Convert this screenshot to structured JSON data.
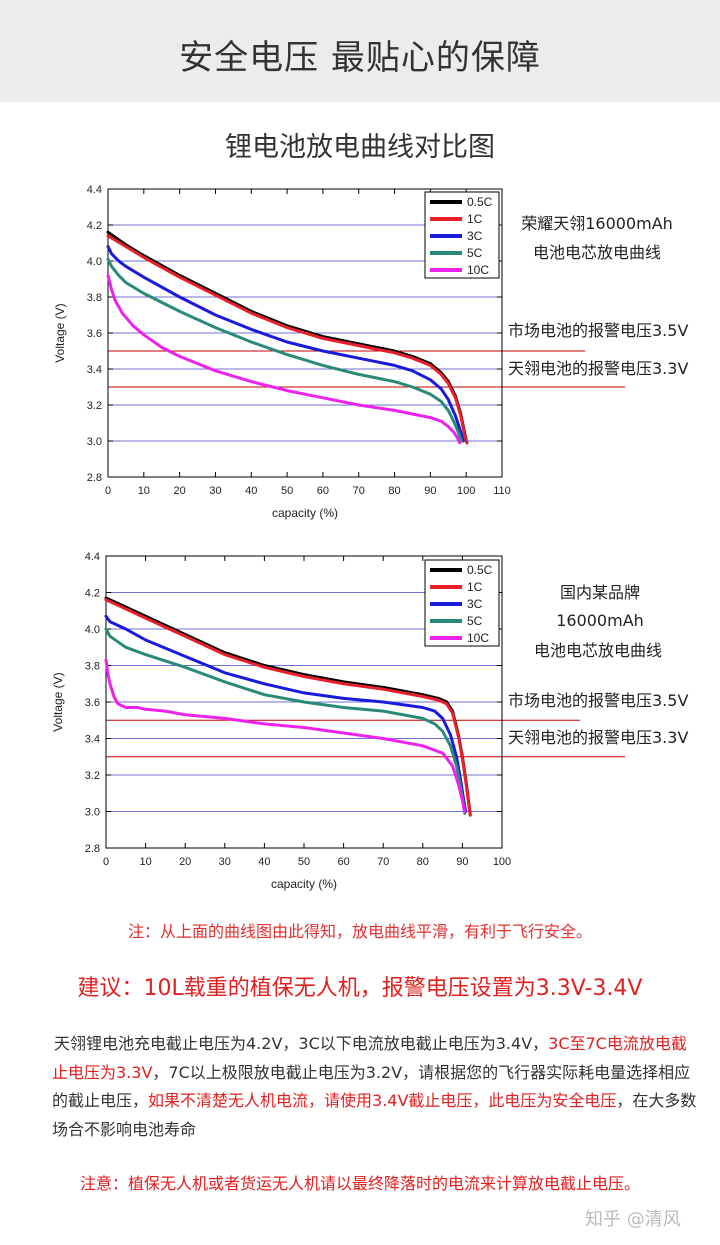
{
  "header": {
    "title": "安全电压 最贴心的保障"
  },
  "subtitle": "锂电池放电曲线对比图",
  "legend_labels": [
    "0.5C",
    "1C",
    "3C",
    "5C",
    "10C"
  ],
  "colors": {
    "c05": "#000000",
    "c1": "#e8202a",
    "c3": "#1a1adc",
    "c5": "#2a8a7a",
    "c10": "#ee22ee",
    "grid": "#7070d0",
    "ref": "#c00000"
  },
  "chart_data": [
    {
      "type": "line",
      "xlabel": "capacity (%)",
      "ylabel": "Voltage (V)",
      "xlim": [
        0,
        110
      ],
      "ylim": [
        2.8,
        4.4
      ],
      "xticks": [
        0,
        10,
        20,
        30,
        40,
        50,
        60,
        70,
        80,
        90,
        100,
        110
      ],
      "yticks": [
        2.8,
        3.0,
        3.2,
        3.4,
        3.6,
        3.8,
        4.0,
        4.2,
        4.4
      ],
      "grid_y": [
        3.0,
        3.2,
        3.4,
        3.6,
        3.8,
        4.0,
        4.2
      ],
      "ref_lines": [
        3.5,
        3.3
      ],
      "annotations": [
        "荣耀天翎16000mAh",
        "电池电芯放电曲线",
        "市场电池的报警电压3.5V",
        "天翎电池的报警电压3.3V"
      ],
      "series": [
        {
          "name": "0.5C",
          "color": "#000000",
          "x": [
            0,
            5,
            10,
            20,
            30,
            40,
            50,
            60,
            70,
            80,
            85,
            90,
            93,
            95,
            97,
            98.5,
            99.5,
            100.2
          ],
          "y": [
            4.16,
            4.09,
            4.03,
            3.92,
            3.82,
            3.72,
            3.64,
            3.58,
            3.54,
            3.5,
            3.47,
            3.43,
            3.38,
            3.33,
            3.25,
            3.15,
            3.05,
            2.99
          ]
        },
        {
          "name": "1C",
          "color": "#e8202a",
          "x": [
            0,
            5,
            10,
            20,
            30,
            40,
            50,
            60,
            70,
            80,
            85,
            90,
            93,
            95,
            97,
            98.5,
            99.5,
            100.2
          ],
          "y": [
            4.14,
            4.08,
            4.02,
            3.91,
            3.81,
            3.71,
            3.63,
            3.57,
            3.53,
            3.49,
            3.46,
            3.42,
            3.37,
            3.32,
            3.24,
            3.14,
            3.04,
            2.99
          ]
        },
        {
          "name": "3C",
          "color": "#1a1adc",
          "x": [
            0,
            1,
            3,
            5,
            10,
            20,
            30,
            40,
            50,
            60,
            70,
            80,
            85,
            90,
            93,
            95,
            97,
            98.5,
            99.2
          ],
          "y": [
            4.08,
            4.04,
            4.0,
            3.97,
            3.91,
            3.8,
            3.7,
            3.62,
            3.55,
            3.5,
            3.46,
            3.42,
            3.39,
            3.34,
            3.29,
            3.23,
            3.14,
            3.05,
            3.0
          ]
        },
        {
          "name": "5C",
          "color": "#2a8a7a",
          "x": [
            0,
            1,
            3,
            5,
            10,
            20,
            30,
            40,
            50,
            60,
            70,
            80,
            85,
            90,
            93,
            95,
            96.5,
            97.8,
            98.7
          ],
          "y": [
            4.01,
            3.97,
            3.92,
            3.88,
            3.82,
            3.72,
            3.63,
            3.55,
            3.48,
            3.42,
            3.37,
            3.33,
            3.3,
            3.26,
            3.22,
            3.17,
            3.11,
            3.05,
            3.0
          ]
        },
        {
          "name": "10C",
          "color": "#ee22ee",
          "x": [
            0,
            1,
            2,
            4,
            7,
            10,
            15,
            20,
            30,
            40,
            50,
            60,
            70,
            80,
            85,
            90,
            93,
            95,
            96.5,
            97.5,
            98.2
          ],
          "y": [
            3.92,
            3.84,
            3.78,
            3.71,
            3.64,
            3.59,
            3.52,
            3.47,
            3.39,
            3.33,
            3.28,
            3.24,
            3.2,
            3.17,
            3.15,
            3.13,
            3.11,
            3.08,
            3.05,
            3.02,
            2.99
          ]
        }
      ]
    },
    {
      "type": "line",
      "xlabel": "capacity (%)",
      "ylabel": "Voltage (V)",
      "xlim": [
        0,
        100
      ],
      "ylim": [
        2.8,
        4.4
      ],
      "xticks": [
        0,
        10,
        20,
        30,
        40,
        50,
        60,
        70,
        80,
        90,
        100
      ],
      "yticks": [
        2.8,
        3.0,
        3.2,
        3.4,
        3.6,
        3.8,
        4.0,
        4.2,
        4.4
      ],
      "grid_y": [
        3.0,
        3.2,
        3.4,
        3.6,
        3.8,
        4.0,
        4.2
      ],
      "ref_lines": [
        3.5,
        3.3
      ],
      "annotations": [
        "国内某品牌",
        "16000mAh",
        "电池电芯放电曲线",
        "市场电池的报警电压3.5V",
        "天翎电池的报警电压3.3V"
      ],
      "series": [
        {
          "name": "0.5C",
          "color": "#000000",
          "x": [
            0,
            5,
            10,
            20,
            30,
            40,
            50,
            60,
            70,
            80,
            84,
            86,
            87.5,
            89,
            90,
            91,
            91.6,
            92
          ],
          "y": [
            4.17,
            4.12,
            4.07,
            3.97,
            3.87,
            3.8,
            3.75,
            3.71,
            3.68,
            3.64,
            3.62,
            3.6,
            3.55,
            3.42,
            3.3,
            3.15,
            3.05,
            2.98
          ]
        },
        {
          "name": "1C",
          "color": "#e8202a",
          "x": [
            0,
            5,
            10,
            20,
            30,
            40,
            50,
            60,
            70,
            80,
            84,
            86,
            87.5,
            89,
            90,
            91,
            91.6,
            92
          ],
          "y": [
            4.16,
            4.11,
            4.06,
            3.96,
            3.86,
            3.79,
            3.74,
            3.7,
            3.67,
            3.63,
            3.61,
            3.59,
            3.54,
            3.41,
            3.29,
            3.14,
            3.04,
            2.98
          ]
        },
        {
          "name": "3C",
          "color": "#1a1adc",
          "x": [
            0,
            1,
            3,
            5,
            10,
            20,
            30,
            40,
            50,
            60,
            70,
            80,
            83,
            85,
            87,
            88.5,
            89.5,
            90.2,
            90.8
          ],
          "y": [
            4.07,
            4.04,
            4.02,
            4.0,
            3.94,
            3.85,
            3.76,
            3.7,
            3.65,
            3.62,
            3.6,
            3.57,
            3.55,
            3.51,
            3.42,
            3.3,
            3.18,
            3.08,
            3.0
          ]
        },
        {
          "name": "5C",
          "color": "#2a8a7a",
          "x": [
            0,
            1,
            3,
            5,
            10,
            20,
            30,
            40,
            50,
            60,
            70,
            80,
            83,
            85,
            87,
            88.5,
            89.5,
            90.2,
            90.6
          ],
          "y": [
            4.0,
            3.96,
            3.93,
            3.9,
            3.86,
            3.79,
            3.71,
            3.64,
            3.6,
            3.57,
            3.55,
            3.51,
            3.48,
            3.44,
            3.36,
            3.25,
            3.14,
            3.05,
            2.99
          ]
        },
        {
          "name": "10C",
          "color": "#ee22ee",
          "x": [
            0,
            0.5,
            1,
            2,
            3,
            5,
            8,
            10,
            15,
            20,
            30,
            40,
            50,
            60,
            70,
            80,
            85,
            87.5,
            89,
            90,
            90.5
          ],
          "y": [
            3.83,
            3.75,
            3.7,
            3.63,
            3.59,
            3.57,
            3.57,
            3.56,
            3.55,
            3.53,
            3.51,
            3.48,
            3.46,
            3.43,
            3.4,
            3.36,
            3.32,
            3.25,
            3.15,
            3.06,
            3.0
          ]
        }
      ]
    }
  ],
  "notes": {
    "note1": "注：从上面的曲线图由此得知，放电曲线平滑，有利于飞行安全。",
    "suggestion": "建议：10L载重的植保无人机，报警电压设置为3.3V-3.4V",
    "para_1": "天翎锂电池充电截止电压为4.2V，3C以下电流放电截止电压为3.4V，",
    "para_2": "3C至7C电流放电截止电压为3.3V",
    "para_3": "，7C以上极限放电截止电压为3.2V，请根据您的飞行器实际耗电量选择相应的截止电压，",
    "para_4": "如果不清楚无人机电流，请使用3.4V截止电压，此电压为安全电压",
    "para_5": "，在大多数场合不影响电池寿命",
    "note3": "注意：植保无人机或者货运无人机请以最终降落时的电流来计算放电截止电压。"
  },
  "watermark": "知乎 @清风"
}
